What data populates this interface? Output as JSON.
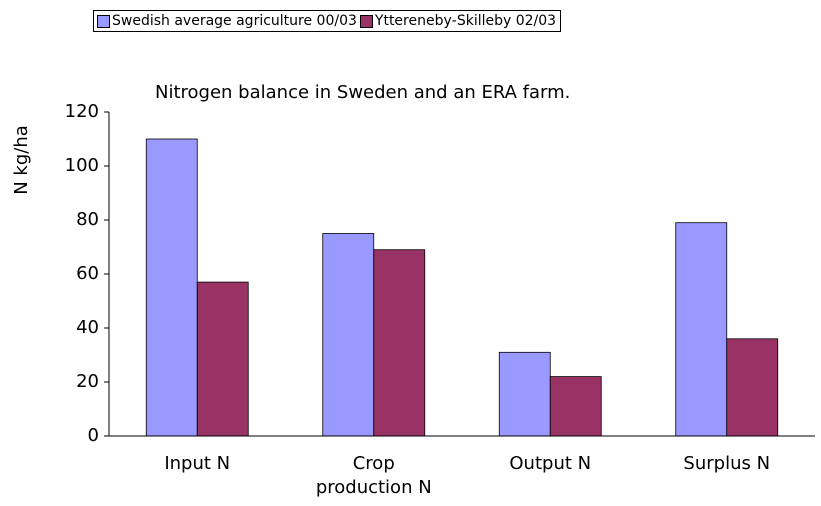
{
  "chart_data": {
    "type": "bar",
    "title": "Nitrogen balance in Sweden and an ERA farm.",
    "y_label": "N kg/ha",
    "categories": [
      "Input N",
      "Crop production N",
      "Output N",
      "Surplus N"
    ],
    "series": [
      {
        "name": "Swedish average agriculture 00/03",
        "color": "#9999ff",
        "values": [
          110,
          75,
          31,
          79
        ]
      },
      {
        "name": "Ytterenebу-Skilleby 02/03",
        "color": "#993366",
        "values": [
          57,
          69,
          22,
          36
        ]
      }
    ],
    "ylim": [
      0,
      120
    ],
    "yticks": [
      0,
      20,
      40,
      60,
      80,
      100,
      120
    ],
    "grid": false,
    "legend": "top"
  }
}
